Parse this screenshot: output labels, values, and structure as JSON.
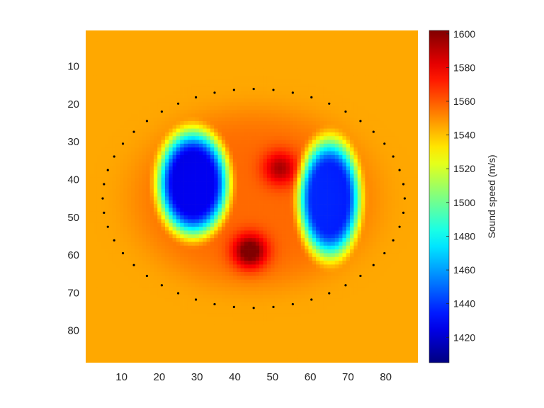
{
  "chart_data": {
    "type": "heatmap",
    "title": "",
    "xlabel": "",
    "ylabel": "",
    "colormap": "jet",
    "x_ticks": [
      10,
      20,
      30,
      40,
      50,
      60,
      70,
      80
    ],
    "y_ticks": [
      10,
      20,
      30,
      40,
      50,
      60,
      70,
      80
    ],
    "xlim": [
      0.5,
      88.5
    ],
    "ylim": [
      0.5,
      88.5
    ],
    "y_direction": "reversed",
    "background_value": 1545,
    "features": [
      {
        "name": "left lobe",
        "center": [
          29,
          41
        ],
        "radii": [
          11.5,
          17
        ],
        "value": 1415
      },
      {
        "name": "right lobe",
        "center": [
          65,
          45
        ],
        "radii": [
          10,
          19
        ],
        "value": 1425
      },
      {
        "name": "upper inclusion",
        "center": [
          52,
          37
        ],
        "radii": [
          3.5,
          3.5
        ],
        "value": 1582
      },
      {
        "name": "lower inclusion",
        "center": [
          44,
          59
        ],
        "radii": [
          3.5,
          3.5
        ],
        "value": 1600
      }
    ],
    "sensor_ring": {
      "center": [
        45,
        45
      ],
      "radii": [
        40,
        29
      ],
      "count": 48
    },
    "colorbar": {
      "label": "Sound speed (m/s)",
      "range": [
        1405,
        1602
      ],
      "ticks": [
        1420,
        1440,
        1460,
        1480,
        1500,
        1520,
        1540,
        1560,
        1580,
        1600
      ]
    }
  }
}
